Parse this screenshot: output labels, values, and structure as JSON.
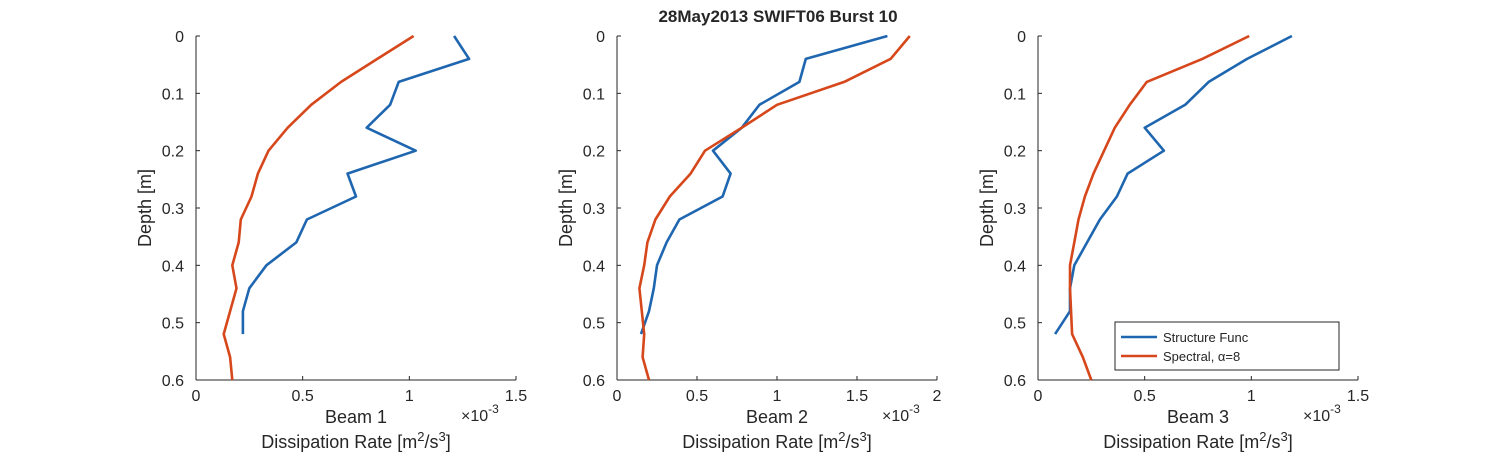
{
  "figure": {
    "title": "28May2013 SWIFT06 Burst 10",
    "legend": {
      "placement": "bottom-right of third panel",
      "entries": [
        {
          "label": "Structure Func",
          "color": "#1f66b0"
        },
        {
          "label": "Spectral, α=8",
          "color": "#d6471b"
        }
      ]
    }
  },
  "chart_data": [
    {
      "type": "line",
      "panel": "Beam 1",
      "xlabel_top": "Beam 1",
      "xlabel_bottom": "Dissipation Rate [m²/s³]",
      "xlabel_bottom_base": "Dissipation Rate [m",
      "xlabel_bottom_sup1": "2",
      "xlabel_bottom_mid": "/s",
      "xlabel_bottom_sup2": "3",
      "xlabel_bottom_end": "]",
      "ylabel": "Depth [m]",
      "x_exponent_base": "×10",
      "x_exponent_power": "-3",
      "xlim": [
        0,
        1.5
      ],
      "ylim": [
        0,
        0.6
      ],
      "y_reversed": true,
      "x_ticks": [
        0,
        0.5,
        1,
        1.5
      ],
      "x_tick_labels": [
        "0",
        "0.5",
        "1",
        "1.5"
      ],
      "y_ticks": [
        0,
        0.1,
        0.2,
        0.3,
        0.4,
        0.5,
        0.6
      ],
      "y_tick_labels": [
        "0",
        "0.1",
        "0.2",
        "0.3",
        "0.4",
        "0.5",
        "0.6"
      ],
      "series": [
        {
          "name": "Structure Func",
          "color": "#1f66b0",
          "x": [
            1.21,
            1.28,
            0.95,
            0.91,
            0.8,
            1.03,
            0.71,
            0.75,
            0.52,
            0.47,
            0.33,
            0.25,
            0.22,
            0.22
          ],
          "y": [
            0.0,
            0.04,
            0.08,
            0.12,
            0.16,
            0.2,
            0.24,
            0.28,
            0.32,
            0.36,
            0.4,
            0.44,
            0.48,
            0.52
          ]
        },
        {
          "name": "Spectral, α=8",
          "color": "#d6471b",
          "x": [
            1.02,
            0.85,
            0.68,
            0.54,
            0.43,
            0.34,
            0.29,
            0.26,
            0.21,
            0.2,
            0.17,
            0.19,
            0.13,
            0.16,
            0.17
          ],
          "y": [
            0.0,
            0.04,
            0.08,
            0.12,
            0.16,
            0.2,
            0.24,
            0.28,
            0.32,
            0.36,
            0.4,
            0.44,
            0.52,
            0.56,
            0.6
          ]
        }
      ]
    },
    {
      "type": "line",
      "panel": "Beam 2",
      "xlabel_top": "Beam 2",
      "xlabel_bottom": "Dissipation Rate [m²/s³]",
      "xlabel_bottom_base": "Dissipation Rate [m",
      "xlabel_bottom_sup1": "2",
      "xlabel_bottom_mid": "/s",
      "xlabel_bottom_sup2": "3",
      "xlabel_bottom_end": "]",
      "ylabel": "Depth [m]",
      "x_exponent_base": "×10",
      "x_exponent_power": "-3",
      "xlim": [
        0,
        2
      ],
      "ylim": [
        0,
        0.6
      ],
      "y_reversed": true,
      "x_ticks": [
        0,
        0.5,
        1,
        1.5,
        2
      ],
      "x_tick_labels": [
        "0",
        "0.5",
        "1",
        "1.5",
        "2"
      ],
      "y_ticks": [
        0,
        0.1,
        0.2,
        0.3,
        0.4,
        0.5,
        0.6
      ],
      "y_tick_labels": [
        "0",
        "0.1",
        "0.2",
        "0.3",
        "0.4",
        "0.5",
        "0.6"
      ],
      "series": [
        {
          "name": "Structure Func",
          "color": "#1f66b0",
          "x": [
            1.69,
            1.18,
            1.14,
            0.89,
            0.78,
            0.6,
            0.71,
            0.66,
            0.39,
            0.31,
            0.25,
            0.23,
            0.2,
            0.15
          ],
          "y": [
            0.0,
            0.04,
            0.08,
            0.12,
            0.16,
            0.2,
            0.24,
            0.28,
            0.32,
            0.36,
            0.4,
            0.44,
            0.48,
            0.52
          ]
        },
        {
          "name": "Spectral, α=8",
          "color": "#d6471b",
          "x": [
            1.83,
            1.71,
            1.42,
            1.0,
            0.78,
            0.55,
            0.46,
            0.33,
            0.24,
            0.19,
            0.17,
            0.14,
            0.17,
            0.16,
            0.2
          ],
          "y": [
            0.0,
            0.04,
            0.08,
            0.12,
            0.16,
            0.2,
            0.24,
            0.28,
            0.32,
            0.36,
            0.4,
            0.44,
            0.52,
            0.56,
            0.6
          ]
        }
      ]
    },
    {
      "type": "line",
      "panel": "Beam 3",
      "xlabel_top": "Beam 3",
      "xlabel_bottom": "Dissipation Rate [m²/s³]",
      "xlabel_bottom_base": "Dissipation Rate [m",
      "xlabel_bottom_sup1": "2",
      "xlabel_bottom_mid": "/s",
      "xlabel_bottom_sup2": "3",
      "xlabel_bottom_end": "]",
      "ylabel": "Depth [m]",
      "x_exponent_base": "×10",
      "x_exponent_power": "-3",
      "xlim": [
        0,
        1.5
      ],
      "ylim": [
        0,
        0.6
      ],
      "y_reversed": true,
      "x_ticks": [
        0,
        0.5,
        1,
        1.5
      ],
      "x_tick_labels": [
        "0",
        "0.5",
        "1",
        "1.5"
      ],
      "y_ticks": [
        0,
        0.1,
        0.2,
        0.3,
        0.4,
        0.5,
        0.6
      ],
      "y_tick_labels": [
        "0",
        "0.1",
        "0.2",
        "0.3",
        "0.4",
        "0.5",
        "0.6"
      ],
      "series": [
        {
          "name": "Structure Func",
          "color": "#1f66b0",
          "x": [
            1.19,
            0.98,
            0.8,
            0.69,
            0.5,
            0.59,
            0.42,
            0.37,
            0.29,
            0.23,
            0.17,
            0.15,
            0.15,
            0.08
          ],
          "y": [
            0.0,
            0.04,
            0.08,
            0.12,
            0.16,
            0.2,
            0.24,
            0.28,
            0.32,
            0.36,
            0.4,
            0.44,
            0.48,
            0.52
          ]
        },
        {
          "name": "Spectral, α=8",
          "color": "#d6471b",
          "x": [
            0.99,
            0.77,
            0.51,
            0.43,
            0.36,
            0.31,
            0.26,
            0.22,
            0.19,
            0.17,
            0.15,
            0.15,
            0.16,
            0.21,
            0.25
          ],
          "y": [
            0.0,
            0.04,
            0.08,
            0.12,
            0.16,
            0.2,
            0.24,
            0.28,
            0.32,
            0.36,
            0.4,
            0.44,
            0.52,
            0.56,
            0.6
          ]
        }
      ]
    }
  ]
}
